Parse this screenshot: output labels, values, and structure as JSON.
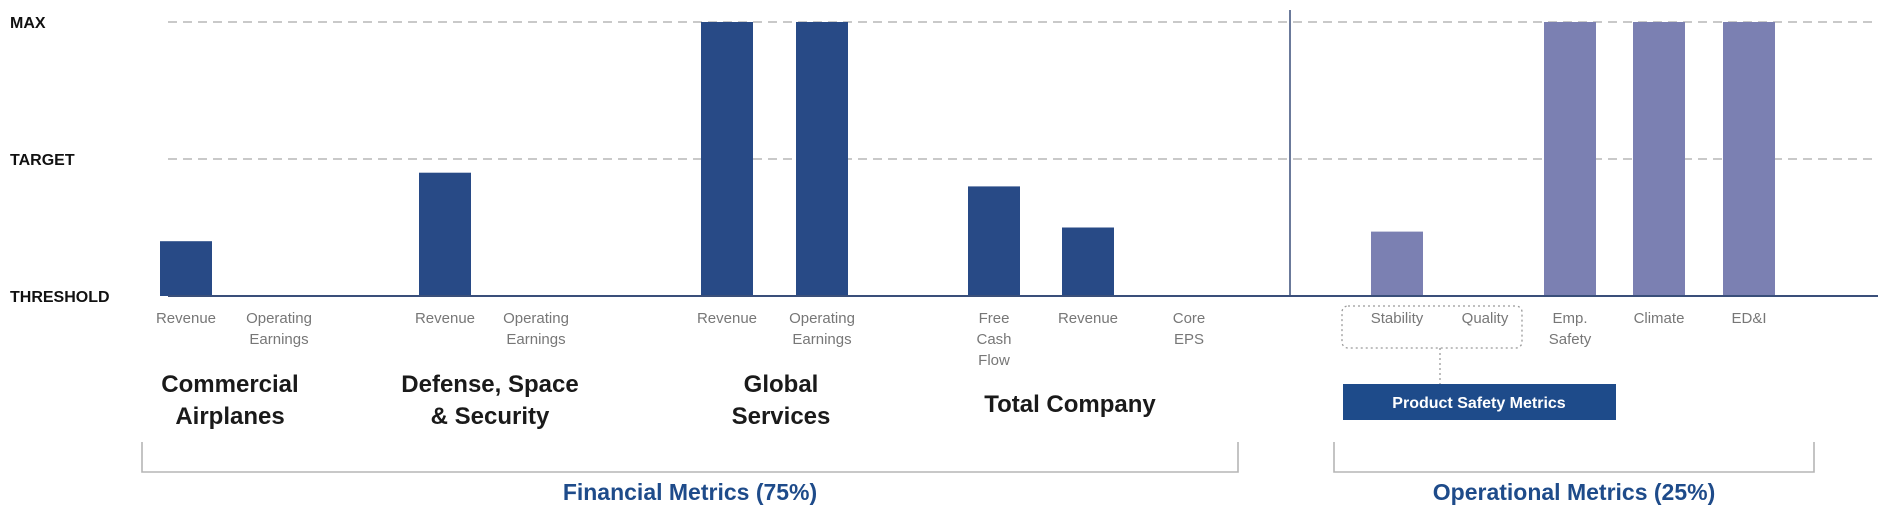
{
  "chart_data": {
    "type": "bar",
    "y_levels": [
      "MAX",
      "TARGET",
      "THRESHOLD"
    ],
    "ylim": [
      0,
      2
    ],
    "grid": "dashed lines at TARGET and MAX",
    "colors": {
      "financial": "#284a86",
      "operational": "#7b80b2",
      "label": "#1e4b8a",
      "grid": "#c9c9c9"
    },
    "categories": [
      {
        "label": [
          "Revenue"
        ],
        "value": 0.4,
        "series": "financial"
      },
      {
        "label": [
          "Operating",
          "Earnings"
        ],
        "value": 0,
        "series": "financial"
      },
      {
        "label": [
          "Revenue"
        ],
        "value": 0.9,
        "series": "financial"
      },
      {
        "label": [
          "Operating",
          "Earnings"
        ],
        "value": 0,
        "series": "financial"
      },
      {
        "label": [
          "Revenue"
        ],
        "value": 2.0,
        "series": "financial"
      },
      {
        "label": [
          "Operating",
          "Earnings"
        ],
        "value": 2.0,
        "series": "financial"
      },
      {
        "label": [
          "Free",
          "Cash",
          "Flow"
        ],
        "value": 0.8,
        "series": "financial"
      },
      {
        "label": [
          "Revenue"
        ],
        "value": 0.5,
        "series": "financial"
      },
      {
        "label": [
          "Core",
          "EPS"
        ],
        "value": 0,
        "series": "financial"
      },
      {
        "label": [
          "Stability"
        ],
        "value": 0.47,
        "series": "operational"
      },
      {
        "label": [
          "Quality"
        ],
        "value": 0,
        "series": "operational"
      },
      {
        "label": [
          "Emp.",
          "Safety"
        ],
        "value": 2.0,
        "series": "operational"
      },
      {
        "label": [
          "Climate"
        ],
        "value": 2.0,
        "series": "operational"
      },
      {
        "label": [
          "ED&I"
        ],
        "value": 2.0,
        "series": "operational"
      }
    ],
    "groups": [
      {
        "label": [
          "Commercial",
          "Airplanes"
        ]
      },
      {
        "label": [
          "Defense, Space",
          "& Security"
        ]
      },
      {
        "label": [
          "Global",
          "Services"
        ]
      },
      {
        "label": [
          "Total Company"
        ]
      }
    ],
    "sections": [
      {
        "label": "Financial Metrics (75%)"
      },
      {
        "label": "Operational Metrics (25%)"
      }
    ],
    "subgroup": {
      "label": "Product Safety Metrics"
    }
  }
}
